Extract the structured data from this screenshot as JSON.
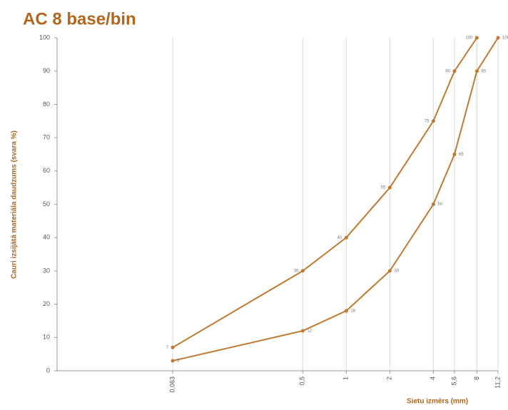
{
  "chart_data": {
    "type": "line",
    "title": "AC 8 base/bin",
    "y_label": "Cauri izsijātā materiāla daudzums (svara %)",
    "x_label": "Sietu izmērs (mm)",
    "x": [
      0.063,
      0.5,
      1,
      2,
      4,
      5.6,
      8,
      11.2
    ],
    "series": [
      {
        "color": "#c07a30",
        "values": [
          7,
          30,
          40,
          55,
          75,
          90,
          100,
          null
        ]
      },
      {
        "color": "#c07a30",
        "values": [
          3,
          12,
          18,
          30,
          50,
          65,
          90,
          100
        ]
      }
    ],
    "xlog": true,
    "xlim": [
      0.01,
      11.2
    ],
    "xticks": [
      {
        "value": 0.063,
        "label": "0,063"
      },
      {
        "value": 0.5,
        "label": "0,5"
      },
      1,
      2,
      4,
      {
        "value": 5.6,
        "label": "5,6"
      },
      8,
      {
        "value": 11.2,
        "label": "11,2"
      }
    ],
    "ylim": [
      0,
      100
    ],
    "yticks": [
      0,
      10,
      20,
      30,
      40,
      50,
      60,
      70,
      80,
      90,
      100
    ],
    "grid": true
  }
}
